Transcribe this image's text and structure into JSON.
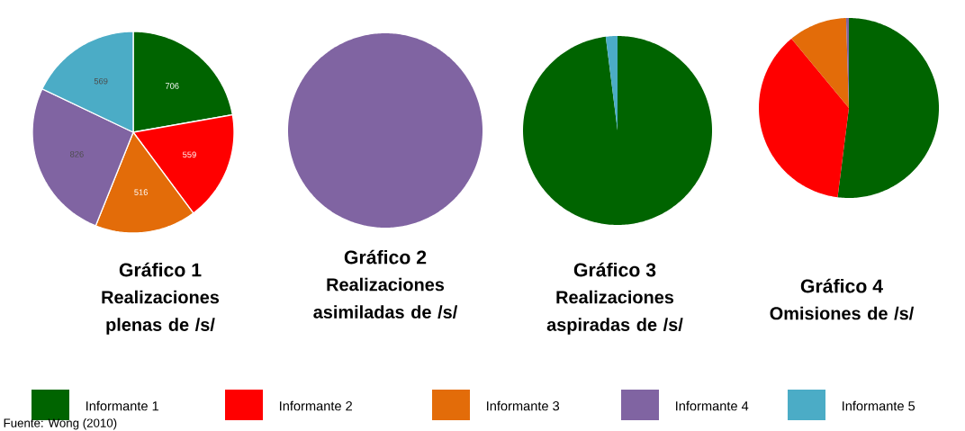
{
  "chart_data": [
    {
      "type": "pie",
      "title": "Gráfico 1",
      "subtitle": "Realizaciones plenas de /s/",
      "categories": [
        "Informante 1",
        "Informante 2",
        "Informante 3",
        "Informante 4",
        "Informante 5"
      ],
      "values": [
        706,
        559,
        516,
        826,
        569
      ],
      "colors": [
        "#006400",
        "#ff0000",
        "#e36c09",
        "#8064a2",
        "#4bacc6"
      ],
      "data_labels": true,
      "legend": "bottom",
      "annotations": [
        "Fuente: Wong (2010)"
      ]
    },
    {
      "type": "pie",
      "title": "Gráfico 2",
      "subtitle": "Realizaciones asimiladas de /s/",
      "categories": [
        null,
        null,
        null,
        null,
        null
      ],
      "values": [
        0,
        0,
        0,
        100,
        0
      ],
      "colors": [
        "#006400",
        "#ff0000",
        "#e36c09",
        "#8064a2",
        "#4bacc6"
      ]
    },
    {
      "type": "pie",
      "title": "Gráfico 3",
      "subtitle": "Realizaciones aspiradas de /s/",
      "categories": [
        null,
        null,
        null,
        null,
        null
      ],
      "values": [
        98,
        0,
        0,
        0,
        2
      ],
      "colors": [
        "#006400",
        "#ff0000",
        "#e36c09",
        "#8064a2",
        "#4bacc6"
      ]
    },
    {
      "type": "pie",
      "title": "Gráfico 4",
      "subtitle": "Omisiones de /s/",
      "categories": [
        null,
        null,
        null,
        null,
        null
      ],
      "values": [
        52,
        37,
        10.5,
        0.5,
        0
      ],
      "colors": [
        "#006400",
        "#ff0000",
        "#e36c09",
        "#8064a2",
        "#4bacc6"
      ]
    }
  ]
}
